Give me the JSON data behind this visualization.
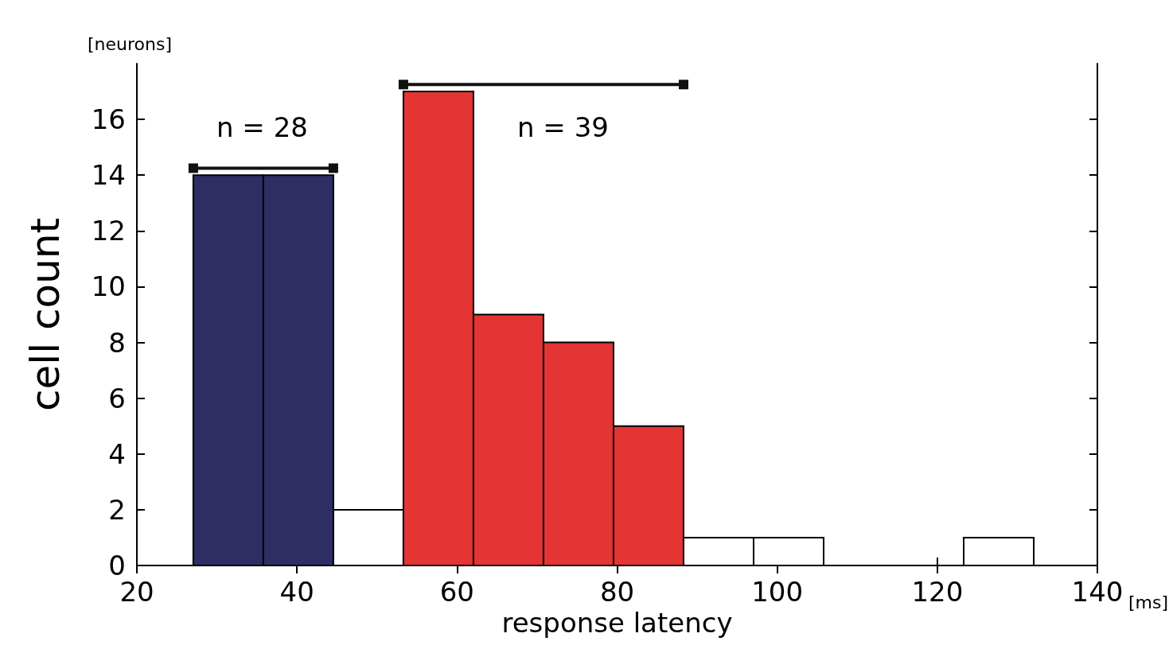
{
  "chart_data": {
    "type": "histogram",
    "xlabel": "response latency",
    "ylabel": "cell count",
    "xlim": [
      20,
      140
    ],
    "xticks": [
      20,
      40,
      60,
      80,
      100,
      120,
      140
    ],
    "ylim": [
      0,
      18
    ],
    "yticks": [
      0,
      2,
      4,
      6,
      8,
      10,
      12,
      14,
      16
    ],
    "grid": false,
    "series": [
      {
        "bins": [
          27.05,
          35.8,
          44.55,
          53.3,
          62.05,
          70.8,
          79.55,
          88.3,
          97.05,
          105.8,
          114.55,
          123.3,
          132.05
        ],
        "values": [
          14,
          14,
          2,
          17,
          9,
          8,
          5,
          1,
          1,
          0,
          0,
          1
        ],
        "colors": [
          "#2e2e64",
          "#2e2e64",
          "#ffffff",
          "#e43434",
          "#e43434",
          "#e43434",
          "#e43434",
          "#ffffff",
          "#ffffff",
          "#ffffff",
          "#ffffff",
          "#ffffff"
        ]
      },
      {
        "type": "line",
        "x": [
          27.05,
          44.55
        ],
        "values": [
          14.25,
          14.25
        ],
        "color": "#111111",
        "marker": "square",
        "line_style": "solid"
      },
      {
        "type": "line",
        "x": [
          53.3,
          88.3
        ],
        "values": [
          17.25,
          17.25
        ],
        "color": "#111111",
        "marker": "square",
        "line_style": "solid"
      }
    ],
    "annotations": [
      "n = 28",
      "n = 39",
      "[neurons]",
      "[ms]"
    ]
  }
}
